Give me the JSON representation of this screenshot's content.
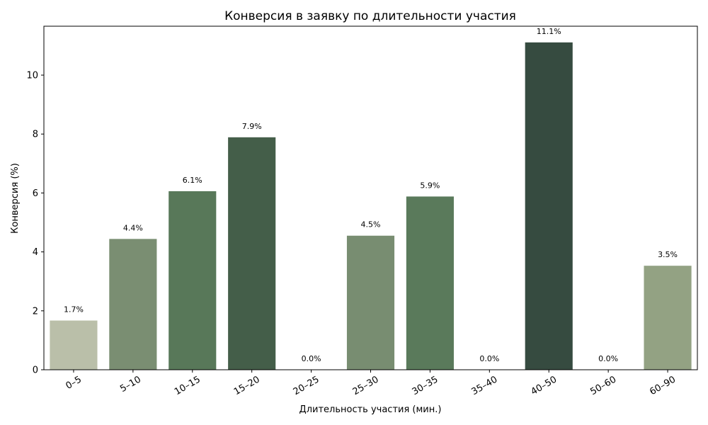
{
  "chart_data": {
    "type": "bar",
    "title": "Конверсия в заявку по длительности участия",
    "title_icon": "",
    "xlabel": "Длительность участия (мин.)",
    "ylabel": "Конверсия (%)",
    "categories": [
      "0–5",
      "5–10",
      "10–15",
      "15–20",
      "20–25",
      "25–30",
      "30–35",
      "35–40",
      "40–50",
      "50–60",
      "60–90"
    ],
    "values": [
      1.67,
      4.44,
      6.06,
      7.89,
      0.0,
      4.55,
      5.88,
      0.0,
      11.11,
      0.0,
      3.53
    ],
    "value_labels": [
      "1.7%",
      "4.4%",
      "6.1%",
      "7.9%",
      "0.0%",
      "4.5%",
      "5.9%",
      "0.0%",
      "11.1%",
      "0.0%",
      "3.5%"
    ],
    "colors": [
      "#babfa9",
      "#7a8e72",
      "#587859",
      "#445e49",
      "#babfa9",
      "#788d71",
      "#5a7a5b",
      "#babfa9",
      "#364b40",
      "#babfa9",
      "#93a283"
    ],
    "yticks": [
      0,
      2,
      4,
      6,
      8,
      10
    ],
    "ylim": [
      0,
      11.66
    ],
    "grid": false,
    "legend": "none"
  }
}
